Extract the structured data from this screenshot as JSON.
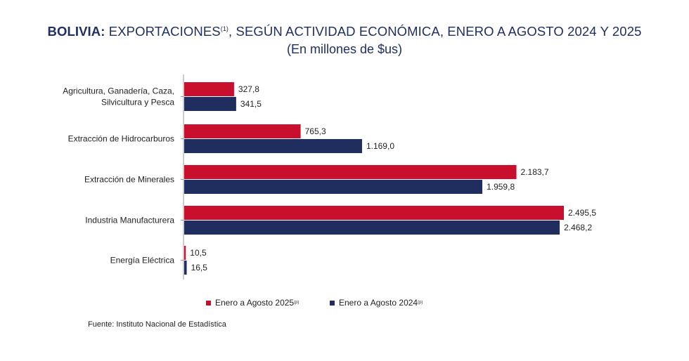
{
  "header": {
    "title_bold": "BOLIVIA:",
    "title_rest": "EXPORTACIONES",
    "title_sup": "(1)",
    "title_tail": ", SEGÚN ACTIVIDAD ECONÓMICA, ENERO A AGOSTO 2024 Y 2025",
    "subtitle": "(En millones de $us)"
  },
  "legend": {
    "s2025_label": "Enero a Agosto  2025",
    "s2025_sup": "(p)",
    "s2024_label": "Enero a Agosto 2024",
    "s2024_sup": "(p)"
  },
  "source": "Fuente: Instituto Nacional de Estadística",
  "colors": {
    "s2025": "#c8102e",
    "s2024": "#1f2d5f",
    "axis": "#9a9a9a"
  },
  "chart_data": {
    "type": "bar",
    "orientation": "horizontal",
    "categories": [
      [
        "Agricultura, Ganadería, Caza,",
        "Silvicultura y Pesca"
      ],
      [
        "Extracción de Hidrocarburos"
      ],
      [
        "Extracción de Minerales"
      ],
      [
        "Industria Manufacturera"
      ],
      [
        "Energía Eléctrica"
      ]
    ],
    "series": [
      {
        "name": "Enero a Agosto  2025",
        "values": [
          327.8,
          765.3,
          2183.7,
          2495.5,
          10.5
        ],
        "labels": [
          "327,8",
          "765,3",
          "2.183,7",
          "2.495,5",
          "10,5"
        ]
      },
      {
        "name": "Enero a Agosto 2024",
        "values": [
          341.5,
          1169.0,
          1959.8,
          2468.2,
          16.5
        ],
        "labels": [
          "341,5",
          "1.169,0",
          "1.959,8",
          "2.468,2",
          "16,5"
        ]
      }
    ],
    "title": "BOLIVIA: EXPORTACIONES(1), SEGÚN ACTIVIDAD ECONÓMICA, ENERO A AGOSTO 2024 Y 2025",
    "subtitle": "(En millones de $us)",
    "xlabel": "",
    "ylabel": "",
    "legend_position": "bottom",
    "grid": false
  }
}
